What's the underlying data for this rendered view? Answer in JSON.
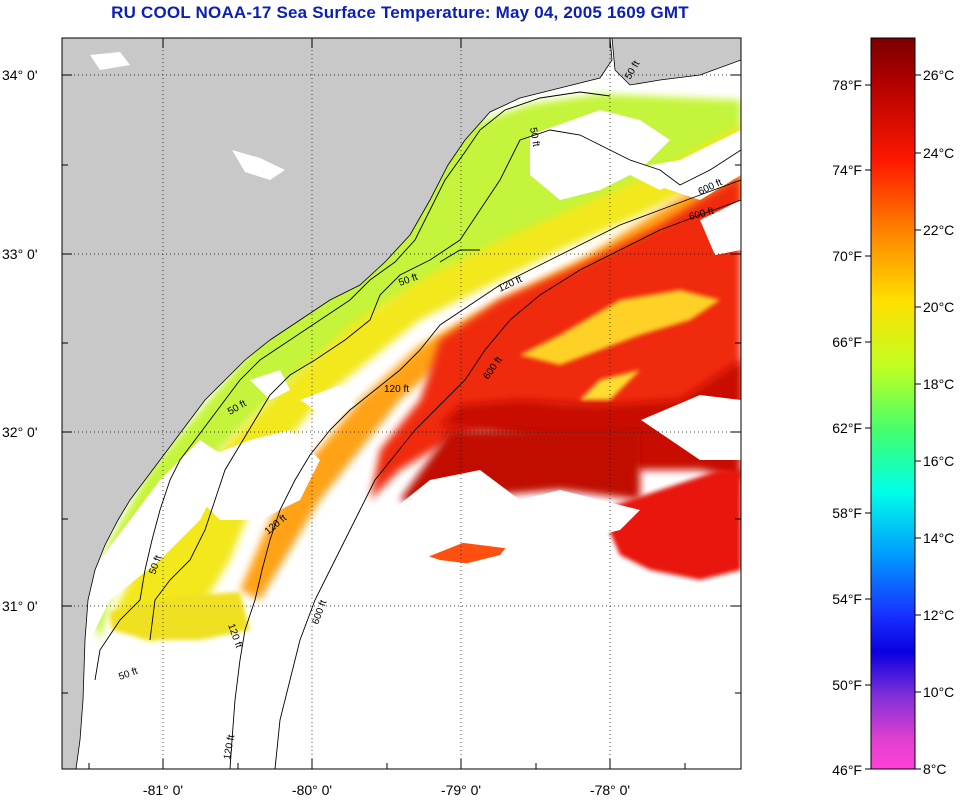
{
  "title": "RU COOL  NOAA-17  Sea Surface Temperature:  May 04, 2005 1609 GMT",
  "map": {
    "lat_labels": [
      "34° 0'",
      "33° 0'",
      "32° 0'",
      "31° 0'"
    ],
    "lon_labels": [
      "-81° 0'",
      "-80° 0'",
      "-79° 0'",
      "-78° 0'"
    ],
    "contour_labels": [
      "50 ft",
      "50 ft",
      "50 ft",
      "50 ft",
      "50 ft",
      "120 ft",
      "120 ft",
      "120 ft",
      "120 ft",
      "600 ft",
      "600 ft",
      "600 ft",
      "600 ft",
      "120 ft",
      "50 ft"
    ],
    "colors": {
      "land": "#c8c8c8",
      "cloud": "#ffffff",
      "warm": "#c80000",
      "cool": "#a8ff40"
    }
  },
  "colorbar": {
    "fahrenheit": [
      "78°F",
      "74°F",
      "70°F",
      "66°F",
      "62°F",
      "58°F",
      "54°F",
      "50°F",
      "46°F"
    ],
    "celsius": [
      "26°C",
      "24°C",
      "22°C",
      "20°C",
      "18°C",
      "16°C",
      "14°C",
      "12°C",
      "10°C",
      "8°C"
    ]
  }
}
